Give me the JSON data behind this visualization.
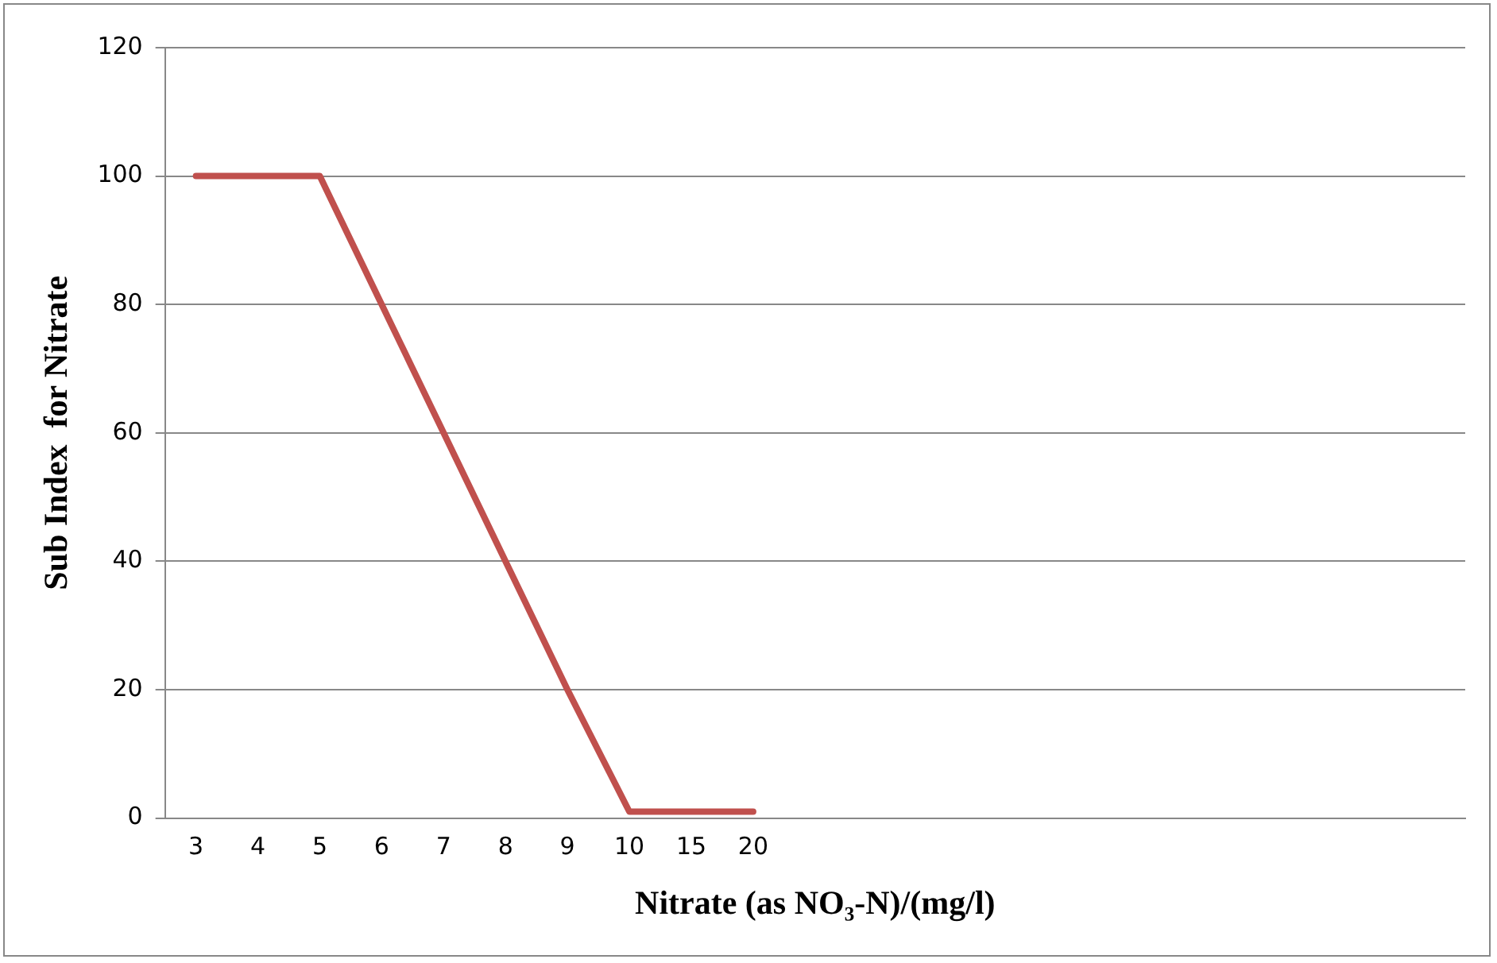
{
  "chart_data": {
    "type": "line",
    "xlabel": "Nitrate (as NO₃-N)/(mg/l)",
    "ylabel": "Sub Index  for Nitrate",
    "categories": [
      "3",
      "4",
      "5",
      "6",
      "7",
      "8",
      "9",
      "10",
      "15",
      "20",
      null,
      null,
      null,
      null,
      null,
      null,
      null,
      null,
      null,
      null,
      null
    ],
    "series": [
      {
        "color": "#c0504d",
        "values": [
          100,
          100,
          100,
          80,
          60,
          40,
          20,
          1,
          1,
          1,
          null,
          null,
          null,
          null,
          null,
          null,
          null,
          null,
          null,
          null,
          null
        ]
      }
    ],
    "ylim": [
      0,
      120
    ],
    "yticks": [
      0,
      20,
      40,
      60,
      80,
      100,
      120
    ],
    "grid": "y",
    "legend": false,
    "marker": "none",
    "line_style": "solid"
  }
}
